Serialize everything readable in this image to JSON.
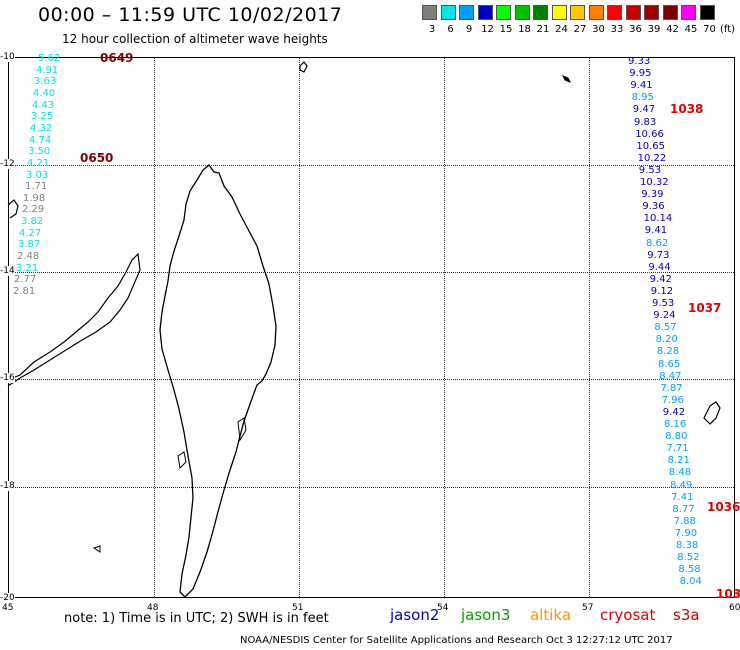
{
  "title": "00:00 – 11:59 UTC 10/02/2017",
  "subtitle": "12 hour collection of altimeter wave heights",
  "legend": {
    "unit": "(ft)",
    "bins": [
      {
        "label": "3",
        "color": "#7f7f7f"
      },
      {
        "label": "6",
        "color": "#00e5e5"
      },
      {
        "label": "9",
        "color": "#00a0ff"
      },
      {
        "label": "12",
        "color": "#0000c8"
      },
      {
        "label": "15",
        "color": "#00ff00"
      },
      {
        "label": "18",
        "color": "#00c000"
      },
      {
        "label": "21",
        "color": "#008000"
      },
      {
        "label": "24",
        "color": "#ffff00"
      },
      {
        "label": "27",
        "color": "#ffc800"
      },
      {
        "label": "30",
        "color": "#ff8000"
      },
      {
        "label": "33",
        "color": "#ff0000"
      },
      {
        "label": "36",
        "color": "#c80000"
      },
      {
        "label": "39",
        "color": "#a00000"
      },
      {
        "label": "42",
        "color": "#780000"
      },
      {
        "label": "45",
        "color": "#ff00ff"
      },
      {
        "label": "70",
        "color": "#000000"
      }
    ]
  },
  "axes": {
    "lat_labels": [
      "-10",
      "-12",
      "-14",
      "-16",
      "-18",
      "-20"
    ],
    "lon_labels": [
      "45",
      "48",
      "51",
      "54",
      "57",
      "60"
    ]
  },
  "track1": {
    "values": [
      {
        "v": "5.62",
        "c": "#00e5e5"
      },
      {
        "v": "4.91",
        "c": "#00e5e5"
      },
      {
        "v": "3.63",
        "c": "#00e5e5"
      },
      {
        "v": "4.40",
        "c": "#00e5e5"
      },
      {
        "v": "4.43",
        "c": "#00e5e5"
      },
      {
        "v": "3.25",
        "c": "#00e5e5"
      },
      {
        "v": "4.32",
        "c": "#00e5e5"
      },
      {
        "v": "4.74",
        "c": "#00e5e5"
      },
      {
        "v": "3.50",
        "c": "#00e5e5"
      },
      {
        "v": "4.21",
        "c": "#00e5e5"
      },
      {
        "v": "3.03",
        "c": "#00e5e5"
      },
      {
        "v": "1.71",
        "c": "#7f7f7f"
      },
      {
        "v": "1.98",
        "c": "#7f7f7f"
      },
      {
        "v": "2.29",
        "c": "#7f7f7f"
      },
      {
        "v": "3.82",
        "c": "#00e5e5"
      },
      {
        "v": "4.27",
        "c": "#00e5e5"
      },
      {
        "v": "3.87",
        "c": "#00e5e5"
      },
      {
        "v": "2.48",
        "c": "#7f7f7f"
      },
      {
        "v": "3.21",
        "c": "#00e5e5"
      },
      {
        "v": "2.77",
        "c": "#7f7f7f"
      },
      {
        "v": "2.81",
        "c": "#7f7f7f"
      }
    ],
    "times": [
      "0649",
      "0650"
    ],
    "time_color": "#800000"
  },
  "track2": {
    "values": [
      {
        "v": "9.33",
        "c": "#0000c8"
      },
      {
        "v": "9.95",
        "c": "#0000c8"
      },
      {
        "v": "9.41",
        "c": "#0000c8"
      },
      {
        "v": "8.95",
        "c": "#00a0ff"
      },
      {
        "v": "9.47",
        "c": "#0000c8"
      },
      {
        "v": "9.83",
        "c": "#0000c8"
      },
      {
        "v": "10.66",
        "c": "#0000c8"
      },
      {
        "v": "10.65",
        "c": "#0000c8"
      },
      {
        "v": "10.22",
        "c": "#0000c8"
      },
      {
        "v": "9.53",
        "c": "#0000c8"
      },
      {
        "v": "10.32",
        "c": "#0000c8"
      },
      {
        "v": "9.39",
        "c": "#0000c8"
      },
      {
        "v": "9.36",
        "c": "#0000c8"
      },
      {
        "v": "10.14",
        "c": "#0000c8"
      },
      {
        "v": "9.41",
        "c": "#0000c8"
      },
      {
        "v": "8.62",
        "c": "#00a0ff"
      },
      {
        "v": "9.73",
        "c": "#0000c8"
      },
      {
        "v": "9.44",
        "c": "#0000c8"
      },
      {
        "v": "9.42",
        "c": "#0000c8"
      },
      {
        "v": "9.12",
        "c": "#0000c8"
      },
      {
        "v": "9.53",
        "c": "#0000c8"
      },
      {
        "v": "9.24",
        "c": "#0000c8"
      },
      {
        "v": "8.57",
        "c": "#00a0ff"
      },
      {
        "v": "8.20",
        "c": "#00a0ff"
      },
      {
        "v": "8.28",
        "c": "#00a0ff"
      },
      {
        "v": "8.65",
        "c": "#00a0ff"
      },
      {
        "v": "8.47",
        "c": "#00a0ff"
      },
      {
        "v": "7.87",
        "c": "#00a0ff"
      },
      {
        "v": "7.96",
        "c": "#00a0ff"
      },
      {
        "v": "9.42",
        "c": "#0000c8"
      },
      {
        "v": "8.16",
        "c": "#00a0ff"
      },
      {
        "v": "8.80",
        "c": "#00a0ff"
      },
      {
        "v": "7.71",
        "c": "#00a0ff"
      },
      {
        "v": "8.21",
        "c": "#00a0ff"
      },
      {
        "v": "8.48",
        "c": "#00a0ff"
      },
      {
        "v": "8.49",
        "c": "#00a0ff"
      },
      {
        "v": "7.41",
        "c": "#00a0ff"
      },
      {
        "v": "8.77",
        "c": "#00a0ff"
      },
      {
        "v": "7.88",
        "c": "#00a0ff"
      },
      {
        "v": "7.90",
        "c": "#00a0ff"
      },
      {
        "v": "8.38",
        "c": "#00a0ff"
      },
      {
        "v": "8.52",
        "c": "#00a0ff"
      },
      {
        "v": "8.58",
        "c": "#00a0ff"
      },
      {
        "v": "8.04",
        "c": "#00a0ff"
      }
    ],
    "times": [
      "1038",
      "1037",
      "1036",
      "103"
    ],
    "time_color": "#e00000"
  },
  "note": "note:  1) Time is in UTC;  2) SWH is in feet",
  "missions": [
    {
      "name": "jason2",
      "color": "#0000c8"
    },
    {
      "name": "jason3",
      "color": "#00a000"
    },
    {
      "name": "altika",
      "color": "#ff9900"
    },
    {
      "name": "cryosat",
      "color": "#e00000"
    },
    {
      "name": "s3a",
      "color": "#cc0000"
    }
  ],
  "credit": "NOAA/NESDIS Center for Satellite Applications and Research    Oct  3 12:27:12 UTC 2017"
}
